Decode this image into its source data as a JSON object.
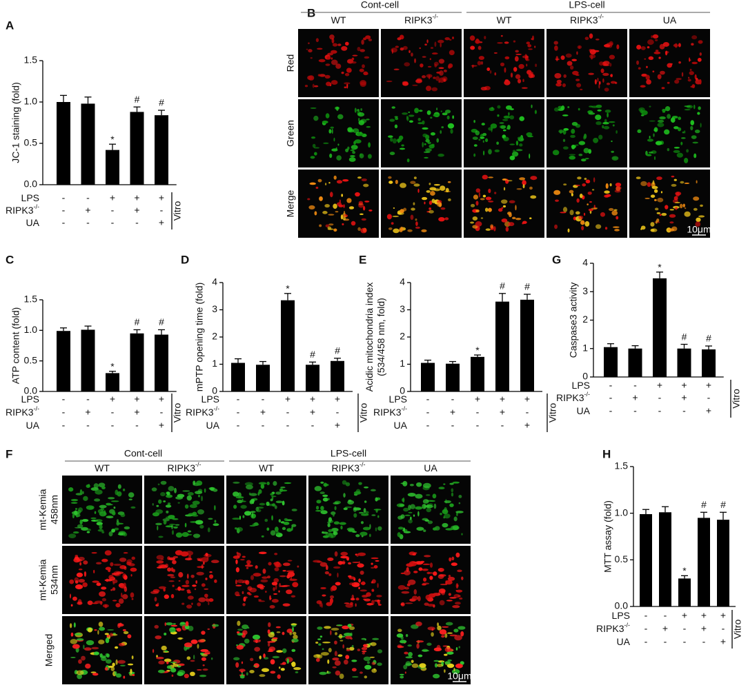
{
  "chart_data": [
    {
      "type": "bar",
      "panel": "A",
      "ylabel": "JC-1 staining (fold)",
      "values": [
        1.0,
        0.98,
        0.42,
        0.88,
        0.84
      ],
      "errors": [
        0.08,
        0.08,
        0.07,
        0.06,
        0.06
      ],
      "annotations": [
        null,
        null,
        "*",
        "#",
        "#"
      ],
      "color": "#000000",
      "ylim": [
        0,
        1.5
      ],
      "yticks": [
        {
          "value": 0,
          "label": "0.0"
        },
        0.5,
        {
          "value": 1,
          "label": "1.0"
        },
        1.5
      ],
      "treatments": [
        {
          "label": "LPS",
          "signs": [
            "-",
            "-",
            "+",
            "+",
            "+"
          ]
        },
        {
          "label": "RIPK3",
          "sup": "-/-",
          "signs": [
            "-",
            "+",
            "-",
            "+",
            "-"
          ]
        },
        {
          "label": "UA",
          "signs": [
            "-",
            "-",
            "-",
            "-",
            "+"
          ]
        }
      ],
      "side_label": "Vitro"
    },
    {
      "type": "bar",
      "panel": "C",
      "ylabel": "ATP content (fold)",
      "values": [
        0.99,
        1.01,
        0.3,
        0.95,
        0.93
      ],
      "errors": [
        0.05,
        0.06,
        0.03,
        0.06,
        0.08
      ],
      "annotations": [
        null,
        null,
        "*",
        "#",
        "#"
      ],
      "color": "#000000",
      "ylim": [
        0,
        1.5
      ],
      "yticks": [
        {
          "value": 0,
          "label": "0.0"
        },
        0.5,
        {
          "value": 1,
          "label": "1.0"
        },
        1.5
      ],
      "treatments": [
        {
          "label": "LPS",
          "signs": [
            "-",
            "-",
            "+",
            "+",
            "+"
          ]
        },
        {
          "label": "RIPK3",
          "sup": "-/-",
          "signs": [
            "-",
            "+",
            "-",
            "+",
            "-"
          ]
        },
        {
          "label": "UA",
          "signs": [
            "-",
            "-",
            "-",
            "-",
            "+"
          ]
        }
      ],
      "side_label": "Vitro"
    },
    {
      "type": "bar",
      "panel": "D",
      "ylabel": "mPTP opening time (fold)",
      "values": [
        1.05,
        0.98,
        3.35,
        0.98,
        1.12
      ],
      "errors": [
        0.15,
        0.12,
        0.25,
        0.1,
        0.1
      ],
      "annotations": [
        null,
        null,
        "*",
        "#",
        "#"
      ],
      "color": "#000000",
      "ylim": [
        0,
        4
      ],
      "yticks": [
        0,
        1,
        2,
        3,
        4
      ],
      "treatments": [
        {
          "label": "LPS",
          "signs": [
            "-",
            "-",
            "+",
            "+",
            "+"
          ]
        },
        {
          "label": "RIPK3",
          "sup": "-/-",
          "signs": [
            "-",
            "+",
            "-",
            "+",
            "-"
          ]
        },
        {
          "label": "UA",
          "signs": [
            "-",
            "-",
            "-",
            "-",
            "+"
          ]
        }
      ],
      "side_label": "Vitro"
    },
    {
      "type": "bar",
      "panel": "E",
      "ylabel": [
        "Acidic mitochondria index",
        "(534/458 nm, fold)"
      ],
      "values": [
        1.05,
        1.02,
        1.27,
        3.3,
        3.37
      ],
      "errors": [
        0.1,
        0.08,
        0.07,
        0.3,
        0.2
      ],
      "annotations": [
        null,
        null,
        "*",
        "#",
        "#"
      ],
      "color": "#000000",
      "ylim": [
        0,
        4
      ],
      "yticks": [
        0,
        1,
        2,
        3,
        4
      ],
      "treatments": [
        {
          "label": "LPS",
          "signs": [
            "-",
            "-",
            "+",
            "+",
            "+"
          ]
        },
        {
          "label": "RIPK3",
          "sup": "-/-",
          "signs": [
            "-",
            "+",
            "-",
            "+",
            "-"
          ]
        },
        {
          "label": "UA",
          "signs": [
            "-",
            "-",
            "-",
            "-",
            "+"
          ]
        }
      ],
      "side_label": "Vitro"
    },
    {
      "type": "bar",
      "panel": "G",
      "ylabel": "Caspase3 activity",
      "values": [
        1.05,
        1.0,
        3.47,
        1.0,
        0.97
      ],
      "errors": [
        0.12,
        0.1,
        0.22,
        0.15,
        0.12
      ],
      "annotations": [
        null,
        null,
        "*",
        "#",
        "#"
      ],
      "color": "#000000",
      "ylim": [
        0,
        4
      ],
      "yticks": [
        0,
        1,
        2,
        3,
        4
      ],
      "treatments": [
        {
          "label": "LPS",
          "signs": [
            "-",
            "-",
            "+",
            "+",
            "+"
          ]
        },
        {
          "label": "RIPK3",
          "sup": "-/-",
          "signs": [
            "-",
            "+",
            "-",
            "+",
            "-"
          ]
        },
        {
          "label": "UA",
          "signs": [
            "-",
            "-",
            "-",
            "-",
            "+"
          ]
        }
      ],
      "side_label": "Vitro"
    },
    {
      "type": "bar",
      "panel": "H",
      "ylabel": "MTT assay (fold)",
      "values": [
        0.99,
        1.01,
        0.3,
        0.95,
        0.93
      ],
      "errors": [
        0.05,
        0.06,
        0.03,
        0.06,
        0.08
      ],
      "annotations": [
        null,
        null,
        "*",
        "#",
        "#"
      ],
      "color": "#000000",
      "ylim": [
        0,
        1.5
      ],
      "yticks": [
        {
          "value": 0,
          "label": "0.0"
        },
        0.5,
        {
          "value": 1,
          "label": "1.0"
        },
        1.5
      ],
      "treatments": [
        {
          "label": "LPS",
          "signs": [
            "-",
            "-",
            "+",
            "+",
            "+"
          ]
        },
        {
          "label": "RIPK3",
          "sup": "-/-",
          "signs": [
            "-",
            "+",
            "-",
            "+",
            "-"
          ]
        },
        {
          "label": "UA",
          "signs": [
            "-",
            "-",
            "-",
            "-",
            "+"
          ]
        }
      ],
      "side_label": "Vitro"
    }
  ],
  "figures": [
    {
      "panel": "B",
      "groups": [
        {
          "label": "Cont-cell",
          "columns": [
            {
              "label": "WT"
            },
            {
              "label": "RIPK3",
              "sup": "-/-"
            }
          ]
        },
        {
          "label": "LPS-cell",
          "columns": [
            {
              "label": "WT"
            },
            {
              "label": "RIPK3",
              "sup": "-/-"
            },
            {
              "label": "UA"
            }
          ]
        }
      ],
      "rows": [
        [
          "Red"
        ],
        [
          "Green"
        ],
        [
          "Merge"
        ]
      ],
      "scale_bar": "10μm"
    },
    {
      "panel": "F",
      "groups": [
        {
          "label": "Cont-cell",
          "columns": [
            {
              "label": "WT"
            },
            {
              "label": "RIPK3",
              "sup": "-/-"
            }
          ]
        },
        {
          "label": "LPS-cell",
          "columns": [
            {
              "label": "WT"
            },
            {
              "label": "RIPK3",
              "sup": "-/-"
            },
            {
              "label": "UA"
            }
          ]
        }
      ],
      "rows": [
        [
          "mt-Kemia",
          "458nm"
        ],
        [
          "mt-Kemia",
          "534nm"
        ],
        [
          "Merged"
        ]
      ],
      "scale_bar": "10μm"
    }
  ]
}
